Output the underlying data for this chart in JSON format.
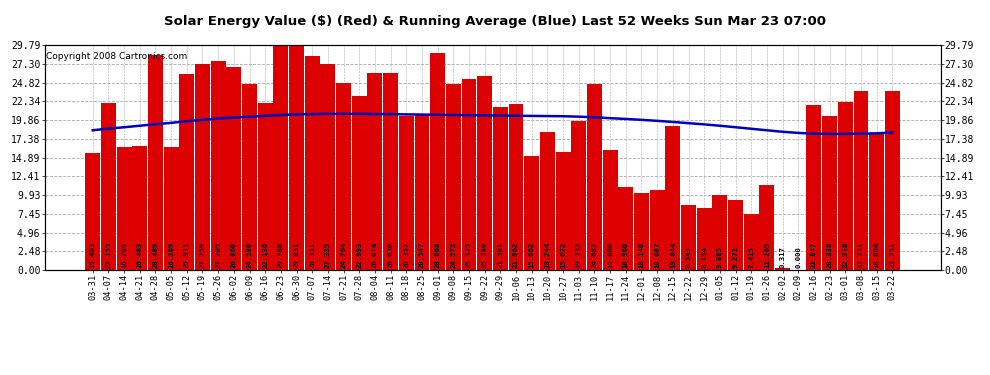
{
  "title": "Solar Energy Value ($) (Red) & Running Average (Blue) Last 52 Weeks Sun Mar 23 07:00",
  "copyright": "Copyright 2008 Cartronics.com",
  "bar_color": "#dd0000",
  "avg_color": "#0000bb",
  "background_color": "#ffffff",
  "plot_bg_color": "#ffffff",
  "grid_color": "#aaaaaa",
  "ylim": [
    0,
    29.79
  ],
  "yticks": [
    0.0,
    2.48,
    4.96,
    7.45,
    9.93,
    12.41,
    14.89,
    17.38,
    19.86,
    22.34,
    24.82,
    27.3,
    29.79
  ],
  "categories": [
    "03-31",
    "04-07",
    "04-14",
    "04-21",
    "04-28",
    "05-05",
    "05-12",
    "05-19",
    "05-26",
    "06-02",
    "06-09",
    "06-16",
    "06-23",
    "06-30",
    "07-07",
    "07-14",
    "07-21",
    "07-28",
    "08-04",
    "08-11",
    "08-18",
    "08-25",
    "09-01",
    "09-08",
    "09-15",
    "09-22",
    "09-29",
    "10-06",
    "10-13",
    "10-20",
    "10-27",
    "11-03",
    "11-10",
    "11-17",
    "11-24",
    "12-01",
    "12-08",
    "12-15",
    "12-22",
    "12-29",
    "01-05",
    "01-12",
    "01-19",
    "01-26",
    "02-02",
    "02-09",
    "02-16",
    "02-23",
    "03-01",
    "03-08",
    "03-15",
    "03-22"
  ],
  "values": [
    15.483,
    22.155,
    16.289,
    16.463,
    28.489,
    16.269,
    25.931,
    27.259,
    27.705,
    26.86,
    24.58,
    22.136,
    29.786,
    29.831,
    28.311,
    27.335,
    24.764,
    22.993,
    26.074,
    26.03,
    20.357,
    20.547,
    28.668,
    24.573,
    25.325,
    25.74,
    21.581,
    21.962,
    15.062,
    18.244,
    15.672,
    19.732,
    24.682,
    15.88,
    10.96,
    10.14,
    10.607,
    19.044,
    8.543,
    8.154,
    9.885,
    9.271,
    7.415,
    11.265,
    0.317,
    0.0,
    21.847,
    20.338,
    22.248,
    23.731,
    18.004,
    23.751
  ],
  "avg_values": [
    18.5,
    18.72,
    18.9,
    19.1,
    19.3,
    19.48,
    19.7,
    19.88,
    20.05,
    20.18,
    20.3,
    20.4,
    20.52,
    20.6,
    20.65,
    20.68,
    20.68,
    20.68,
    20.66,
    20.64,
    20.6,
    20.58,
    20.55,
    20.52,
    20.5,
    20.48,
    20.45,
    20.42,
    20.4,
    20.38,
    20.36,
    20.3,
    20.22,
    20.1,
    20.0,
    19.88,
    19.75,
    19.6,
    19.44,
    19.28,
    19.1,
    18.9,
    18.7,
    18.5,
    18.3,
    18.15,
    18.05,
    18.02,
    18.02,
    18.05,
    18.1,
    18.2
  ]
}
